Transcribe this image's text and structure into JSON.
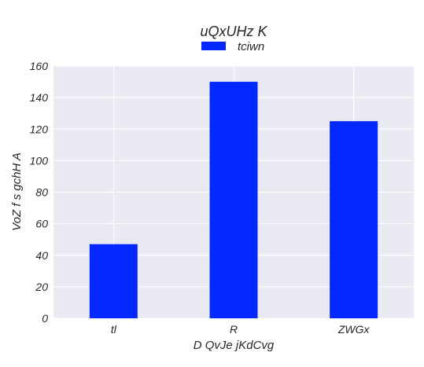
{
  "chart_data": {
    "type": "bar",
    "title": "uQxUHz K",
    "xlabel": "D QvJe jKdCvg",
    "ylabel": "VoZ f s gchH A",
    "categories": [
      "tl",
      "R",
      "ZWGx"
    ],
    "series": [
      {
        "name": "tciwn",
        "values": [
          47,
          150,
          125
        ],
        "color": "#0028ff"
      }
    ],
    "ylim": [
      0,
      160
    ],
    "yticks": [
      0,
      20,
      40,
      60,
      80,
      100,
      120,
      140,
      160
    ],
    "grid": true,
    "legend_position": "top-center",
    "background": "#eaeaf2",
    "grid_color": "#ffffff"
  }
}
